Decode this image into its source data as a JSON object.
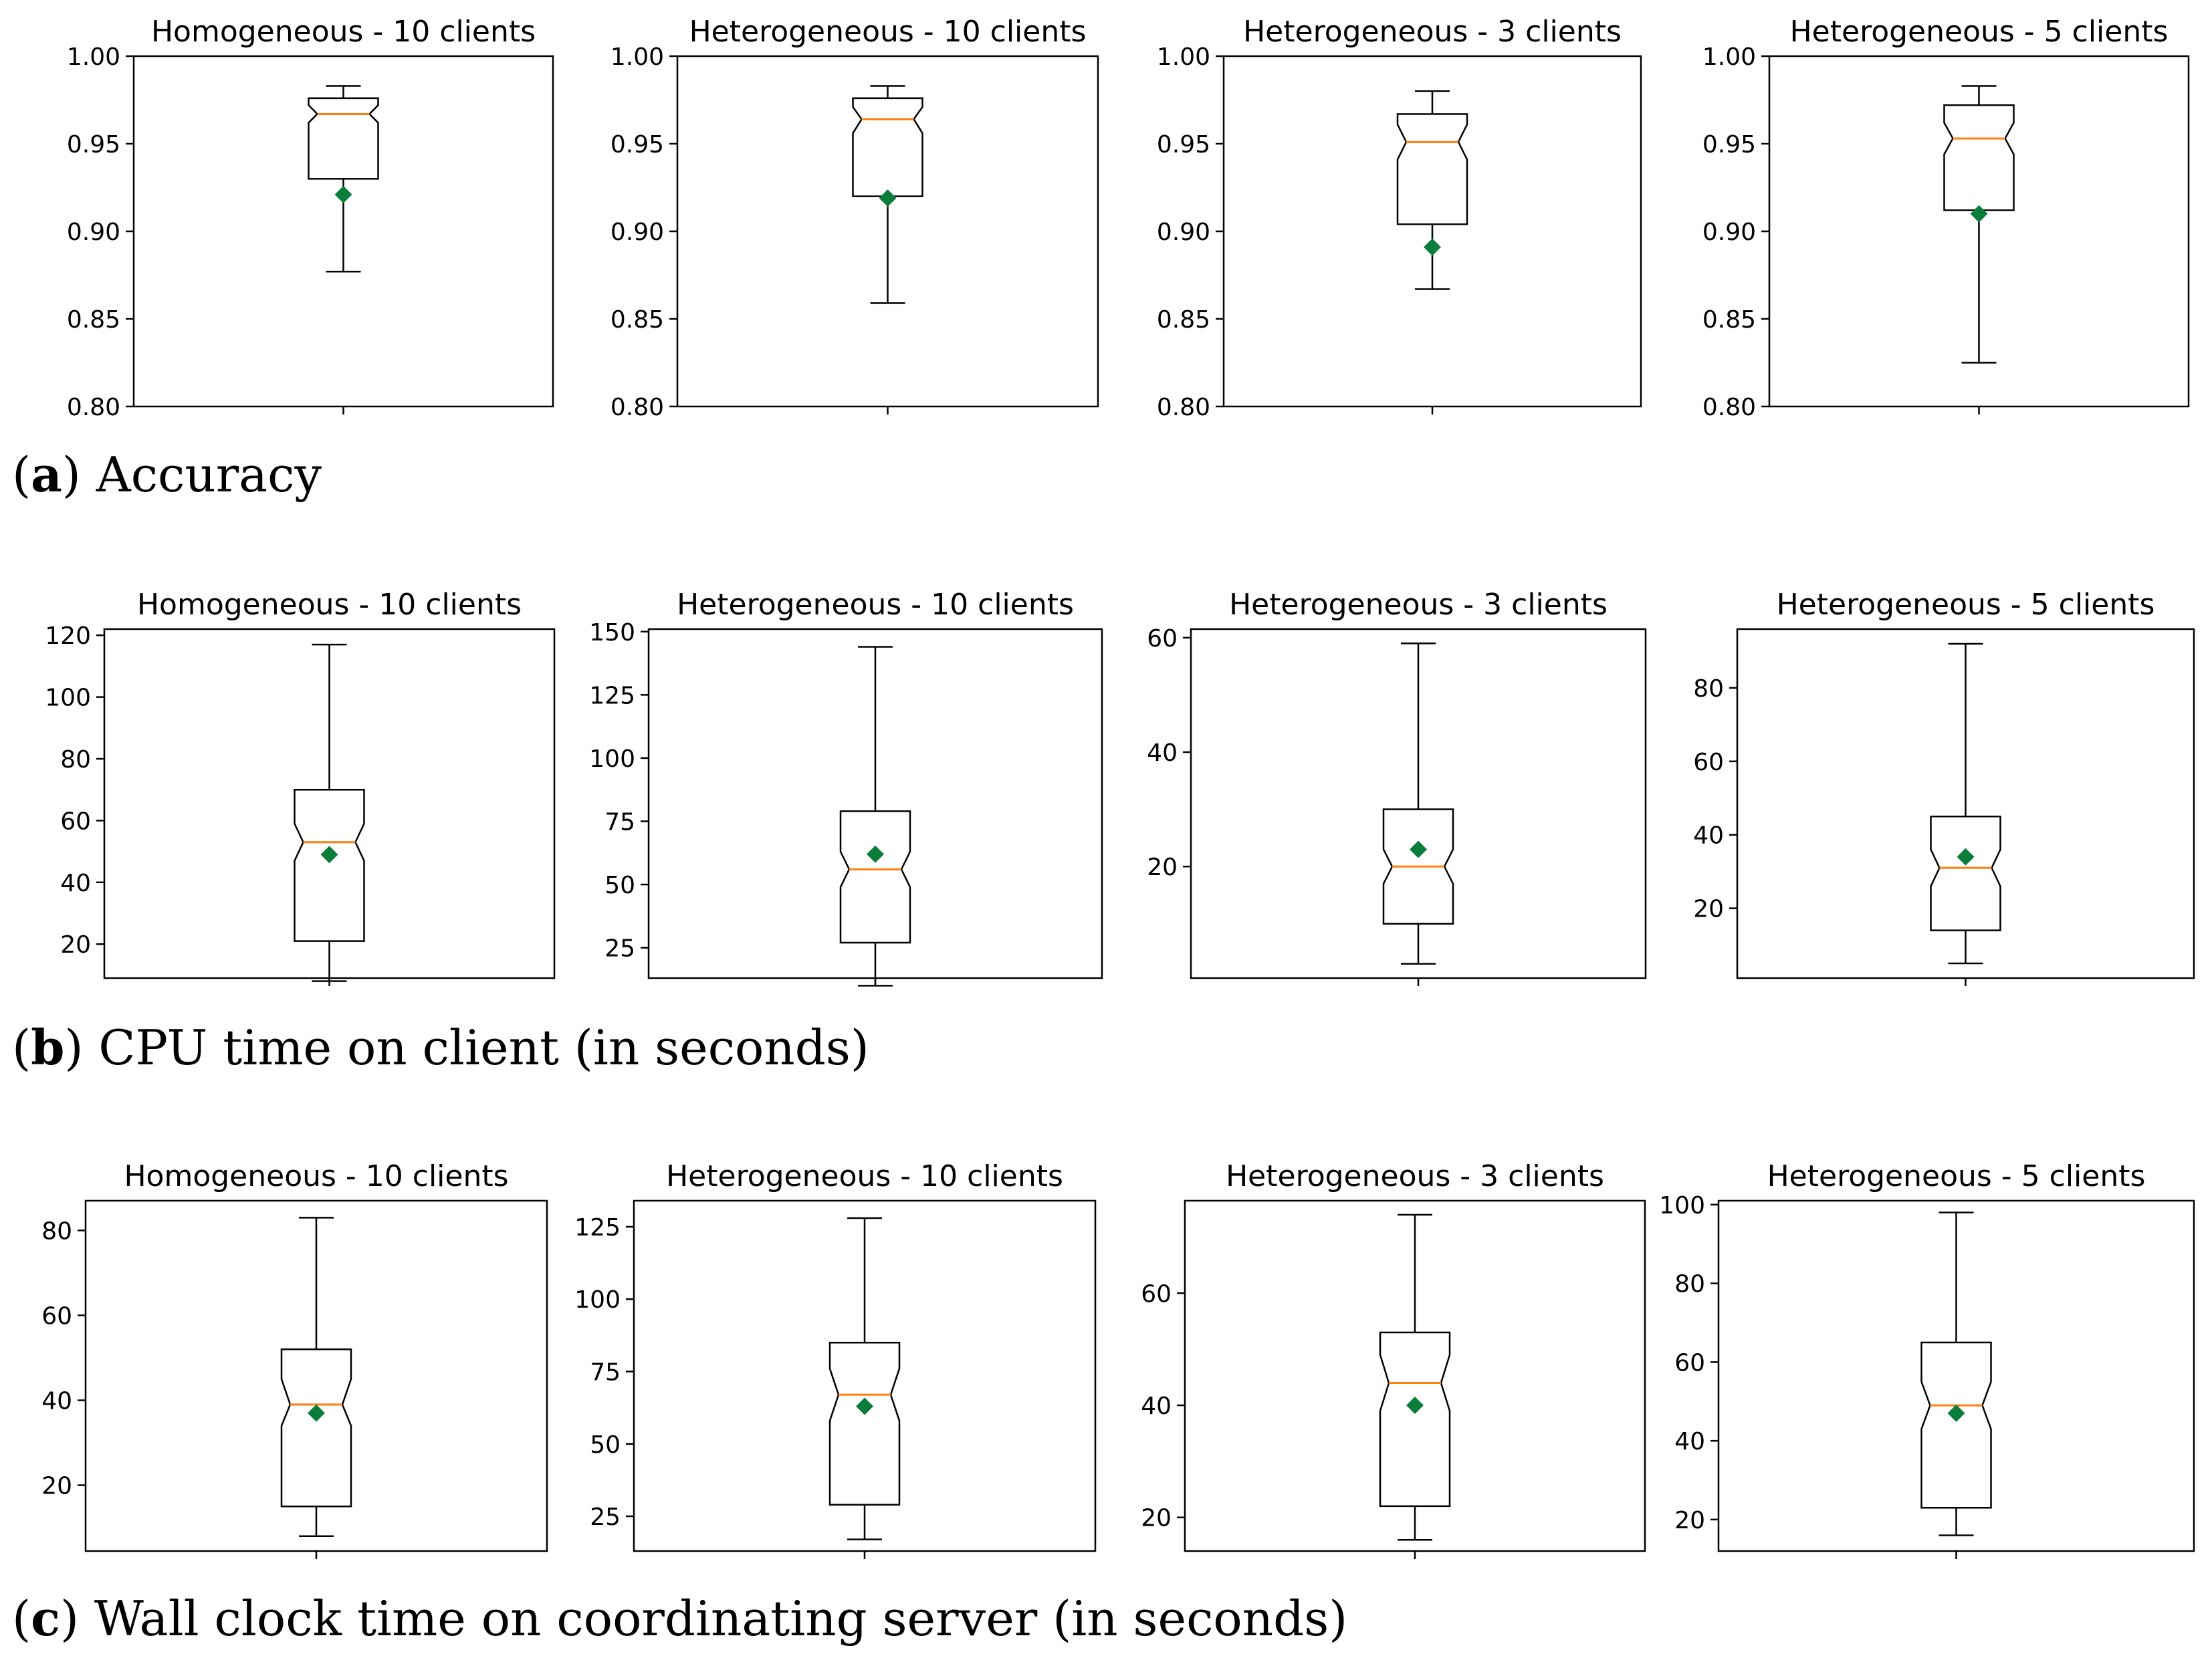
{
  "chart_data": [
    {
      "type": "boxplot",
      "row_label": "a",
      "row_caption": "Accuracy",
      "panels": [
        {
          "title": "Homogeneous - 10 clients",
          "ylim": [
            0.8,
            1.0
          ],
          "yticks": [
            0.8,
            0.85,
            0.9,
            0.95,
            1.0
          ],
          "tick_labels": [
            "0.80",
            "0.85",
            "0.90",
            "0.95",
            "1.00"
          ],
          "whisker_low": 0.877,
          "q1": 0.93,
          "median": 0.967,
          "q3": 0.976,
          "whisker_high": 0.983,
          "notch_low": 0.962,
          "notch_high": 0.972,
          "mean": 0.921
        },
        {
          "title": "Heterogeneous - 10 clients",
          "ylim": [
            0.8,
            1.0
          ],
          "yticks": [
            0.8,
            0.85,
            0.9,
            0.95,
            1.0
          ],
          "tick_labels": [
            "0.80",
            "0.85",
            "0.90",
            "0.95",
            "1.00"
          ],
          "whisker_low": 0.859,
          "q1": 0.92,
          "median": 0.964,
          "q3": 0.976,
          "whisker_high": 0.983,
          "notch_low": 0.956,
          "notch_high": 0.971,
          "mean": 0.919
        },
        {
          "title": "Heterogeneous - 3 clients",
          "ylim": [
            0.8,
            1.0
          ],
          "yticks": [
            0.8,
            0.85,
            0.9,
            0.95,
            1.0
          ],
          "tick_labels": [
            "0.80",
            "0.85",
            "0.90",
            "0.95",
            "1.00"
          ],
          "whisker_low": 0.867,
          "q1": 0.904,
          "median": 0.951,
          "q3": 0.967,
          "whisker_high": 0.98,
          "notch_low": 0.941,
          "notch_high": 0.961,
          "mean": 0.891
        },
        {
          "title": "Heterogeneous - 5 clients",
          "ylim": [
            0.8,
            1.0
          ],
          "yticks": [
            0.8,
            0.85,
            0.9,
            0.95,
            1.0
          ],
          "tick_labels": [
            "0.80",
            "0.85",
            "0.90",
            "0.95",
            "1.00"
          ],
          "whisker_low": 0.825,
          "q1": 0.912,
          "median": 0.953,
          "q3": 0.972,
          "whisker_high": 0.983,
          "notch_low": 0.944,
          "notch_high": 0.962,
          "mean": 0.91
        }
      ]
    },
    {
      "type": "boxplot",
      "row_label": "b",
      "row_caption": "CPU time on client (in seconds)",
      "panels": [
        {
          "title": "Homogeneous - 10 clients",
          "ylim": [
            9,
            122
          ],
          "yticks": [
            20,
            40,
            60,
            80,
            100,
            120
          ],
          "tick_labels": [
            "20",
            "40",
            "60",
            "80",
            "100",
            "120"
          ],
          "whisker_low": 8,
          "q1": 21,
          "median": 53,
          "q3": 70,
          "whisker_high": 117,
          "notch_low": 47,
          "notch_high": 59,
          "mean": 49
        },
        {
          "title": "Heterogeneous - 10 clients",
          "ylim": [
            13,
            151
          ],
          "yticks": [
            25,
            50,
            75,
            100,
            125,
            150
          ],
          "tick_labels": [
            "25",
            "50",
            "75",
            "100",
            "125",
            "150"
          ],
          "whisker_low": 10,
          "q1": 27,
          "median": 56,
          "q3": 79,
          "whisker_high": 144,
          "notch_low": 49,
          "notch_high": 63,
          "mean": 62
        },
        {
          "title": "Heterogeneous - 3 clients",
          "ylim": [
            0.5,
            61.5
          ],
          "yticks": [
            20,
            40,
            60
          ],
          "tick_labels": [
            "20",
            "40",
            "60"
          ],
          "whisker_low": 3,
          "q1": 10,
          "median": 20,
          "q3": 30,
          "whisker_high": 59,
          "notch_low": 17,
          "notch_high": 23,
          "mean": 23
        },
        {
          "title": "Heterogeneous - 5 clients",
          "ylim": [
            1,
            96
          ],
          "yticks": [
            20,
            40,
            60,
            80
          ],
          "tick_labels": [
            "20",
            "40",
            "60",
            "80"
          ],
          "whisker_low": 5,
          "q1": 14,
          "median": 31,
          "q3": 45,
          "whisker_high": 92,
          "notch_low": 26,
          "notch_high": 36,
          "mean": 34
        }
      ]
    },
    {
      "type": "boxplot",
      "row_label": "c",
      "row_caption": "Wall clock time on coordinating server (in seconds)",
      "panels": [
        {
          "title": "Homogeneous - 10 clients",
          "ylim": [
            4.5,
            87
          ],
          "yticks": [
            20,
            40,
            60,
            80
          ],
          "tick_labels": [
            "20",
            "40",
            "60",
            "80"
          ],
          "whisker_low": 8,
          "q1": 15,
          "median": 39,
          "q3": 52,
          "whisker_high": 83,
          "notch_low": 34,
          "notch_high": 45,
          "mean": 37
        },
        {
          "title": "Heterogeneous - 10 clients",
          "ylim": [
            13,
            134
          ],
          "yticks": [
            25,
            50,
            75,
            100,
            125
          ],
          "tick_labels": [
            "25",
            "50",
            "75",
            "100",
            "125"
          ],
          "whisker_low": 17,
          "q1": 29,
          "median": 67,
          "q3": 85,
          "whisker_high": 128,
          "notch_low": 58,
          "notch_high": 76,
          "mean": 63
        },
        {
          "title": "Heterogeneous - 3 clients",
          "ylim": [
            14,
            76.5
          ],
          "yticks": [
            20,
            40,
            60
          ],
          "tick_labels": [
            "20",
            "40",
            "60"
          ],
          "whisker_low": 16,
          "q1": 22,
          "median": 44,
          "q3": 53,
          "whisker_high": 74,
          "notch_low": 39,
          "notch_high": 49,
          "mean": 40
        },
        {
          "title": "Heterogeneous - 5 clients",
          "ylim": [
            12,
            101
          ],
          "yticks": [
            20,
            40,
            60,
            80,
            100
          ],
          "tick_labels": [
            "20",
            "40",
            "60",
            "80",
            "100"
          ],
          "whisker_low": 16,
          "q1": 23,
          "median": 49,
          "q3": 65,
          "whisker_high": 98,
          "notch_low": 43,
          "notch_high": 55,
          "mean": 47
        }
      ]
    }
  ],
  "colors": {
    "median": "#ff7f0e",
    "mean_marker": "#0a7d3b",
    "box": "#000000"
  }
}
